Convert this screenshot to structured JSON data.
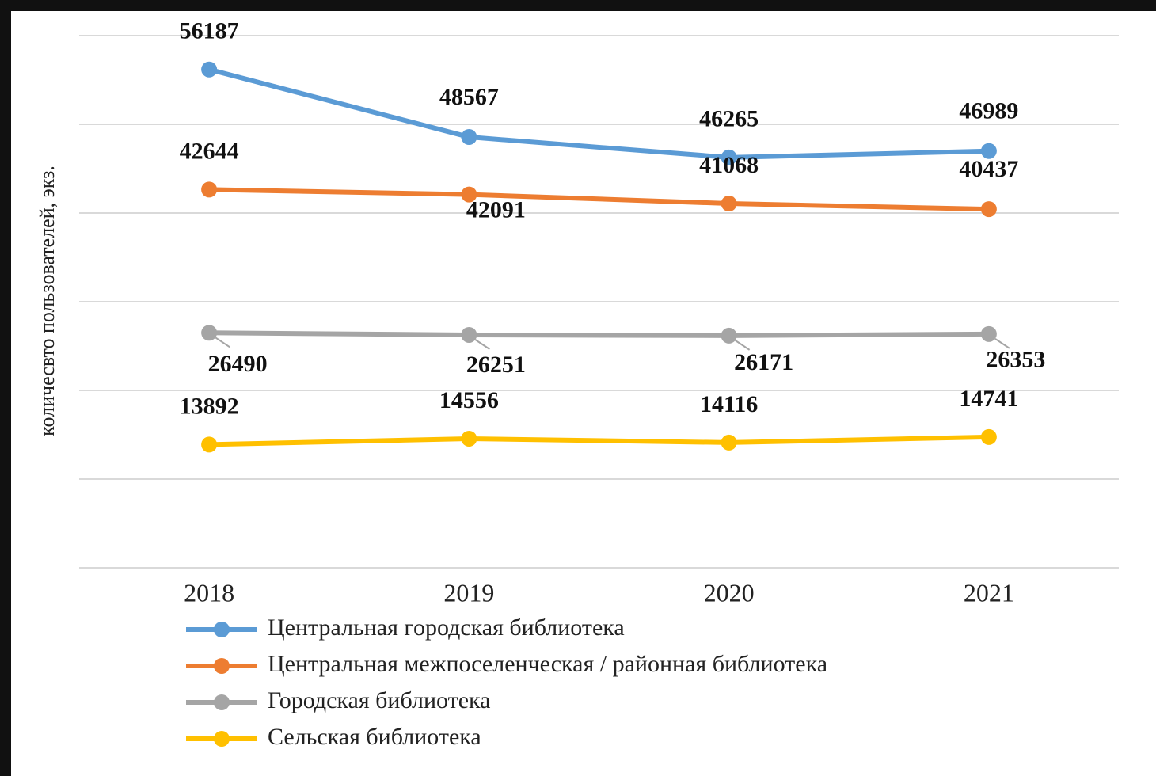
{
  "chart_data": {
    "type": "line",
    "y_axis_label": "количесвто пользователей, экз.",
    "categories": [
      "2018",
      "2019",
      "2020",
      "2021"
    ],
    "series": [
      {
        "name": "Центральная городская библиотека",
        "color": "#5b9bd5",
        "values": [
          56187,
          48567,
          46265,
          46989
        ]
      },
      {
        "name": "Центральная межпоселенческая / районная библиотека",
        "color": "#ed7d31",
        "values": [
          42644,
          42091,
          41068,
          40437
        ]
      },
      {
        "name": "Городская библиотека",
        "color": "#a5a5a5",
        "values": [
          26490,
          26251,
          26171,
          26353
        ]
      },
      {
        "name": "Сельская библиотека",
        "color": "#ffc000",
        "values": [
          13892,
          14556,
          14116,
          14741
        ]
      }
    ],
    "ylim": [
      0,
      60000
    ],
    "yticks": [
      0,
      10000,
      20000,
      30000,
      40000,
      50000,
      60000
    ],
    "grid": true,
    "legend": "bottom"
  }
}
